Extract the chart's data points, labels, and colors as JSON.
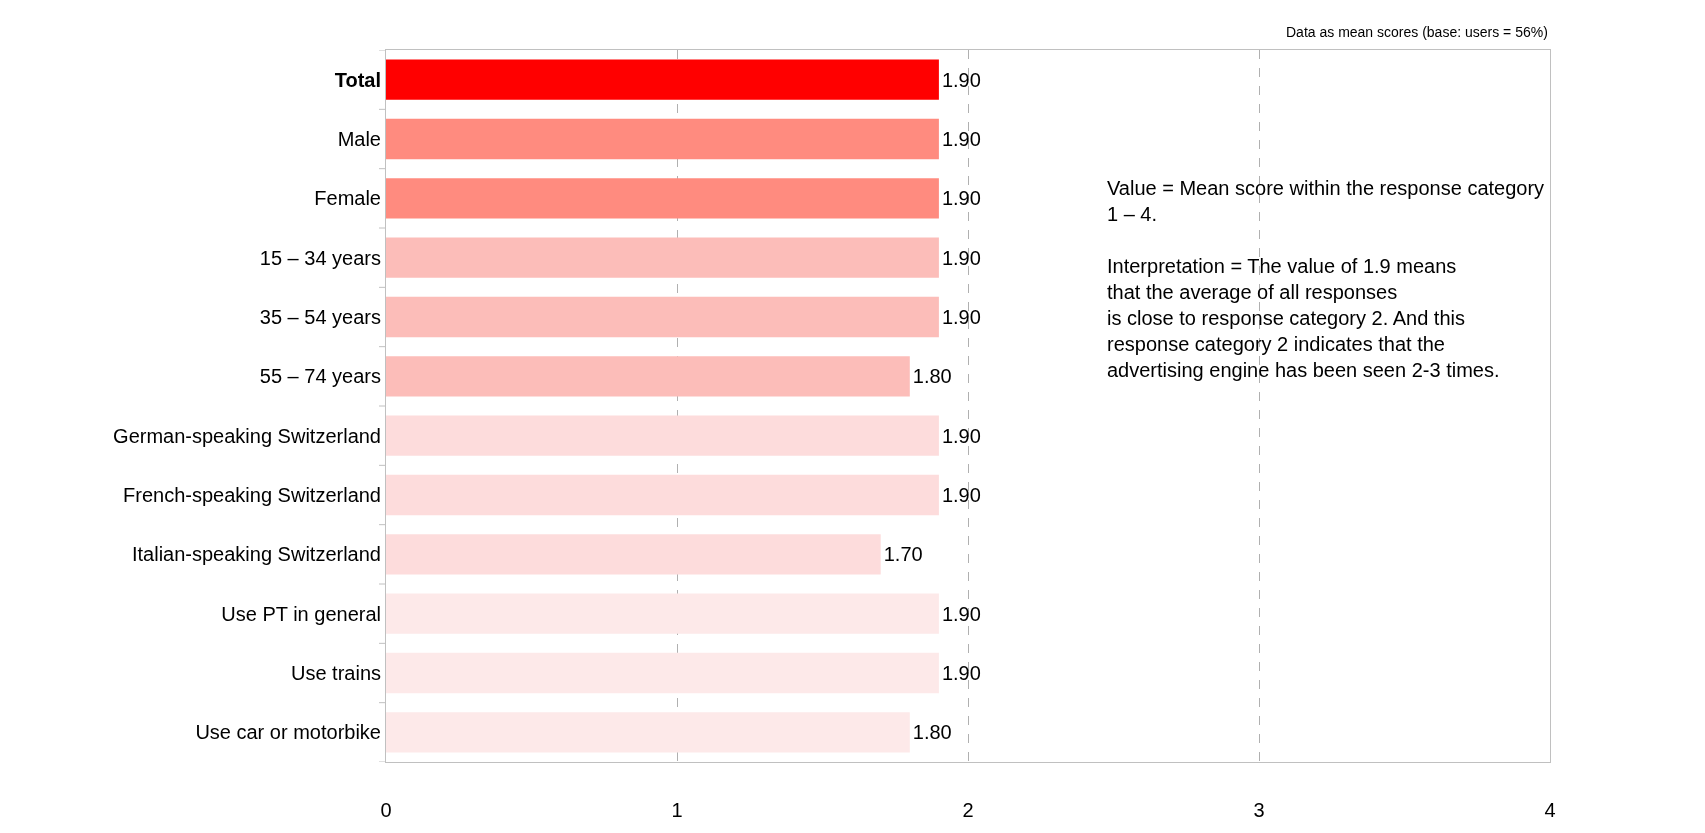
{
  "chart_data": {
    "type": "bar",
    "orientation": "horizontal",
    "categories": [
      "Total",
      "Male",
      "Female",
      "15 – 34 years",
      "35 – 54 years",
      "55 – 74 years",
      "German-speaking Switzerland",
      "French-speaking Switzerland",
      "Italian-speaking Switzerland",
      "Use PT in general",
      "Use trains",
      "Use car or motorbike"
    ],
    "values": [
      1.9,
      1.9,
      1.9,
      1.9,
      1.9,
      1.8,
      1.9,
      1.9,
      1.7,
      1.9,
      1.9,
      1.8
    ],
    "value_labels": [
      "1.90",
      "1.90",
      "1.90",
      "1.90",
      "1.90",
      "1.80",
      "1.90",
      "1.90",
      "1.70",
      "1.90",
      "1.90",
      "1.80"
    ],
    "colors": [
      "#ff0000",
      "#ff8b7f",
      "#ff8b7f",
      "#fcbdb9",
      "#fcbdb9",
      "#fcbdb9",
      "#fddcdc",
      "#fddcdc",
      "#fddcdc",
      "#fde9e9",
      "#fde9e9",
      "#fde9e9"
    ],
    "xlim": [
      0,
      4
    ],
    "xticks": [
      0,
      1,
      2,
      3,
      4
    ],
    "grid": "x",
    "legend": false,
    "annotations": [
      "Data as mean scores (base: users = 56%)",
      "Value = Mean score within the response category\n1 – 4.\n\nInterpretation = The value of 1.9 means\nthat the average of all responses\nis close to response category 2. And this\nresponse category 2 indicates that the\nadvertising engine has been seen 2-3 times."
    ]
  }
}
